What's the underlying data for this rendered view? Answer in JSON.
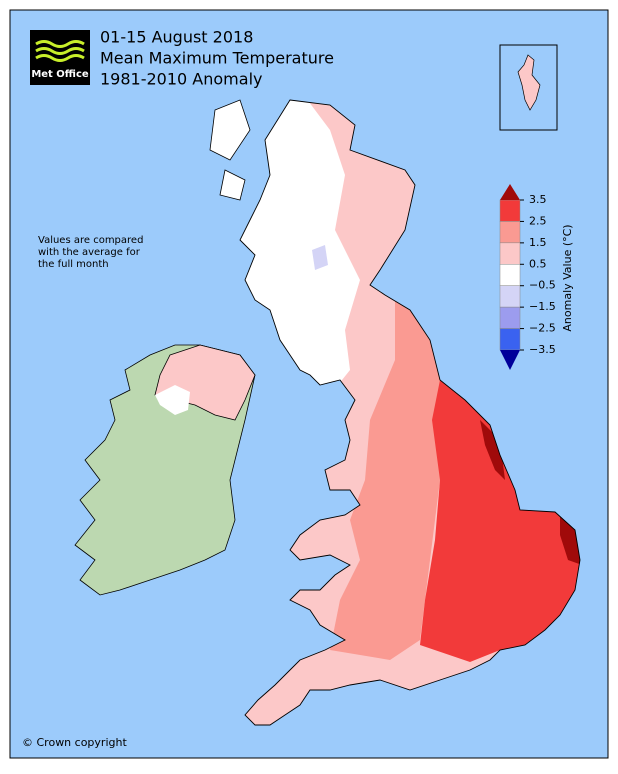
{
  "header": {
    "logo": "Met Office",
    "title": [
      "01-15 August 2018",
      "Mean Maximum Temperature",
      "1981-2010 Anomaly"
    ]
  },
  "note": [
    "Values are compared",
    "with the average for",
    "the full month"
  ],
  "legend": {
    "label": "Anomaly Value (°C)",
    "ticks": [
      3.5,
      2.5,
      1.5,
      0.5,
      {
        "value": -0.5,
        "label": "−0.5"
      },
      {
        "value": -1.5,
        "label": "−1.5"
      },
      {
        "value": -2.5,
        "label": "−2.5"
      },
      {
        "value": -3.5,
        "label": "−3.5"
      }
    ],
    "colors": [
      "#f23a3a",
      "#fa9a92",
      "#fcc8c8",
      "#ffffff",
      "#d4d4f6",
      "#9c9cee",
      "#3a62f0"
    ],
    "over_color": "#a00a0a",
    "under_color": "#00009a"
  },
  "copyright": "© Crown copyright"
}
